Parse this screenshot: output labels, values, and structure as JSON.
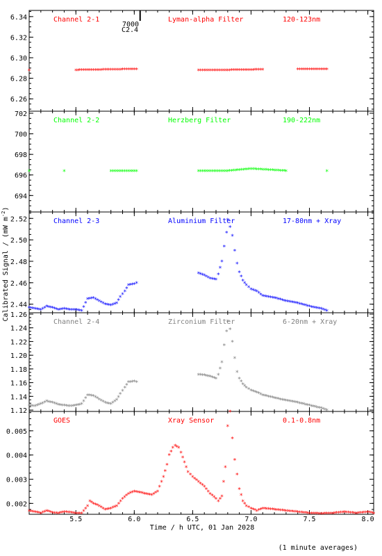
{
  "figure": {
    "ylabel": "Calibrated Signal / (mW m",
    "ylabel_sup": "-2",
    "ylabel_end": ")",
    "xlabel": "Time / h UTC, 01 Jan 2028",
    "footnote": "(1 minute averages)",
    "marker_text_1": "7000",
    "marker_text_2": "C2.4"
  },
  "chart_data": [
    {
      "type": "scatter",
      "panel": "Channel 2-1",
      "title": "Channel 2-1",
      "filter": "Lyman-alpha Filter",
      "band": "120-123nm",
      "color": "#ff0000",
      "xlim": [
        5.1,
        8.05
      ],
      "ylim": [
        6.248,
        6.346
      ],
      "yticks": [
        6.26,
        6.28,
        6.3,
        6.32,
        6.34
      ],
      "ytick_labels": [
        "6.26",
        "6.28",
        "6.30",
        "6.32",
        "6.34"
      ],
      "series": [
        {
          "x": [
            5.1,
            5.5,
            5.8,
            6.02,
            6.55,
            6.8,
            7.1,
            7.4,
            7.65
          ],
          "y": [
            6.288,
            6.288,
            6.2885,
            6.289,
            6.288,
            6.288,
            6.2885,
            6.289,
            6.289
          ]
        }
      ]
    },
    {
      "type": "scatter",
      "panel": "Channel 2-2",
      "title": "Channel 2-2",
      "filter": "Herzberg Filter",
      "band": "190-222nm",
      "color": "#00ff00",
      "xlim": [
        5.1,
        8.05
      ],
      "ylim": [
        692.4,
        702.2
      ],
      "yticks": [
        694,
        696,
        698,
        700,
        702
      ],
      "ytick_labels": [
        "694",
        "696",
        "698",
        "700",
        "702"
      ],
      "series": [
        {
          "x": [
            5.1,
            5.4,
            5.8,
            6.02,
            6.55,
            6.8,
            7.0,
            7.3,
            7.65
          ],
          "y": [
            696.4,
            696.4,
            696.4,
            696.4,
            696.4,
            696.4,
            696.6,
            696.4,
            696.4
          ]
        }
      ]
    },
    {
      "type": "scatter",
      "panel": "Channel 2-3",
      "title": "Channel 2-3",
      "filter": "Aluminium Filter",
      "band": "17-80nm + Xray",
      "color": "#0000ff",
      "xlim": [
        5.1,
        8.05
      ],
      "ylim": [
        2.432,
        2.526
      ],
      "yticks": [
        2.44,
        2.46,
        2.48,
        2.5,
        2.52
      ],
      "ytick_labels": [
        "2.44",
        "2.46",
        "2.48",
        "2.50",
        "2.52"
      ],
      "series": [
        {
          "x": [
            5.1,
            5.15,
            5.2,
            5.25,
            5.3,
            5.35,
            5.4,
            5.45,
            5.5,
            5.55,
            5.6,
            5.65,
            5.7,
            5.75,
            5.8,
            5.85,
            5.88,
            5.92,
            5.95,
            6.0,
            6.02,
            6.55,
            6.6,
            6.65,
            6.7,
            6.72,
            6.75,
            6.77,
            6.79,
            6.8,
            6.82,
            6.84,
            6.86,
            6.88,
            6.9,
            6.93,
            6.96,
            7.0,
            7.05,
            7.1,
            7.2,
            7.3,
            7.4,
            7.5,
            7.6,
            7.65
          ],
          "y": [
            2.437,
            2.436,
            2.435,
            2.438,
            2.437,
            2.435,
            2.436,
            2.435,
            2.435,
            2.434,
            2.445,
            2.446,
            2.443,
            2.44,
            2.439,
            2.441,
            2.447,
            2.452,
            2.458,
            2.459,
            2.46,
            2.469,
            2.467,
            2.464,
            2.463,
            2.468,
            2.48,
            2.494,
            2.507,
            2.519,
            2.512,
            2.504,
            2.49,
            2.478,
            2.47,
            2.462,
            2.458,
            2.454,
            2.452,
            2.448,
            2.446,
            2.443,
            2.441,
            2.438,
            2.436,
            2.434
          ]
        }
      ]
    },
    {
      "type": "scatter",
      "panel": "Channel 2-4",
      "title": "Channel 2-4",
      "filter": "Zirconium Filter",
      "band": "6-20nm + Xray",
      "color": "#808080",
      "xlim": [
        5.1,
        8.05
      ],
      "ylim": [
        1.118,
        1.262
      ],
      "yticks": [
        1.12,
        1.14,
        1.16,
        1.18,
        1.2,
        1.22,
        1.24,
        1.26
      ],
      "ytick_labels": [
        "1.12",
        "1.14",
        "1.16",
        "1.18",
        "1.20",
        "1.22",
        "1.24",
        "1.26"
      ],
      "series": [
        {
          "x": [
            5.1,
            5.15,
            5.2,
            5.25,
            5.3,
            5.35,
            5.4,
            5.45,
            5.5,
            5.55,
            5.6,
            5.65,
            5.7,
            5.75,
            5.8,
            5.85,
            5.88,
            5.92,
            5.95,
            6.0,
            6.02,
            6.55,
            6.6,
            6.65,
            6.7,
            6.72,
            6.75,
            6.77,
            6.79,
            6.8,
            6.82,
            6.84,
            6.86,
            6.88,
            6.9,
            6.93,
            6.96,
            7.0,
            7.05,
            7.1,
            7.2,
            7.3,
            7.4,
            7.5,
            7.6,
            7.65
          ],
          "y": [
            1.127,
            1.126,
            1.129,
            1.133,
            1.131,
            1.128,
            1.127,
            1.126,
            1.127,
            1.129,
            1.142,
            1.141,
            1.136,
            1.131,
            1.129,
            1.135,
            1.144,
            1.153,
            1.161,
            1.162,
            1.161,
            1.172,
            1.171,
            1.169,
            1.166,
            1.172,
            1.19,
            1.215,
            1.235,
            1.25,
            1.238,
            1.22,
            1.196,
            1.176,
            1.166,
            1.158,
            1.153,
            1.149,
            1.146,
            1.142,
            1.138,
            1.134,
            1.131,
            1.127,
            1.123,
            1.12
          ]
        }
      ]
    },
    {
      "type": "scatter",
      "panel": "GOES",
      "title": "GOES",
      "filter": "Xray Sensor",
      "band": "0.1-0.8nm",
      "color": "#ff0000",
      "xlim": [
        5.1,
        8.05
      ],
      "ylim": [
        0.00155,
        0.0058
      ],
      "yticks": [
        0.002,
        0.003,
        0.004,
        0.005
      ],
      "ytick_labels": [
        "0.002",
        "0.003",
        "0.004",
        "0.005"
      ],
      "series": [
        {
          "x": [
            5.1,
            5.15,
            5.2,
            5.25,
            5.3,
            5.35,
            5.4,
            5.45,
            5.5,
            5.55,
            5.6,
            5.62,
            5.65,
            5.7,
            5.75,
            5.8,
            5.85,
            5.9,
            5.95,
            6.0,
            6.05,
            6.1,
            6.15,
            6.2,
            6.25,
            6.28,
            6.3,
            6.33,
            6.35,
            6.38,
            6.4,
            6.43,
            6.46,
            6.5,
            6.55,
            6.6,
            6.65,
            6.7,
            6.72,
            6.75,
            6.78,
            6.8,
            6.82,
            6.84,
            6.86,
            6.88,
            6.9,
            6.93,
            6.96,
            7.0,
            7.05,
            7.1,
            7.2,
            7.3,
            7.4,
            7.5,
            7.6,
            7.7,
            7.8,
            7.9,
            8.0,
            8.05
          ],
          "y": [
            0.0017,
            0.00165,
            0.0016,
            0.0017,
            0.00162,
            0.0016,
            0.00165,
            0.00163,
            0.0016,
            0.0016,
            0.0019,
            0.0021,
            0.002,
            0.0019,
            0.00175,
            0.0018,
            0.0019,
            0.0022,
            0.0024,
            0.0025,
            0.00245,
            0.0024,
            0.00235,
            0.0025,
            0.0031,
            0.0036,
            0.004,
            0.0043,
            0.0044,
            0.0043,
            0.0041,
            0.0037,
            0.0033,
            0.0031,
            0.0029,
            0.0027,
            0.0024,
            0.0022,
            0.0021,
            0.0023,
            0.0035,
            0.0052,
            0.0058,
            0.0047,
            0.0038,
            0.0032,
            0.0026,
            0.0021,
            0.0019,
            0.0018,
            0.0017,
            0.0018,
            0.00175,
            0.0017,
            0.00165,
            0.0016,
            0.00158,
            0.0016,
            0.00165,
            0.0016,
            0.00165,
            0.0016
          ]
        }
      ]
    }
  ],
  "x_axis": {
    "ticks": [
      5.5,
      6.0,
      6.5,
      7.0,
      7.5,
      8.0
    ],
    "tick_labels": [
      "5.5",
      "6.0",
      "6.5",
      "7.0",
      "7.5",
      "8.0"
    ],
    "xlim": [
      5.1,
      8.05
    ],
    "marker_x": 6.05
  }
}
